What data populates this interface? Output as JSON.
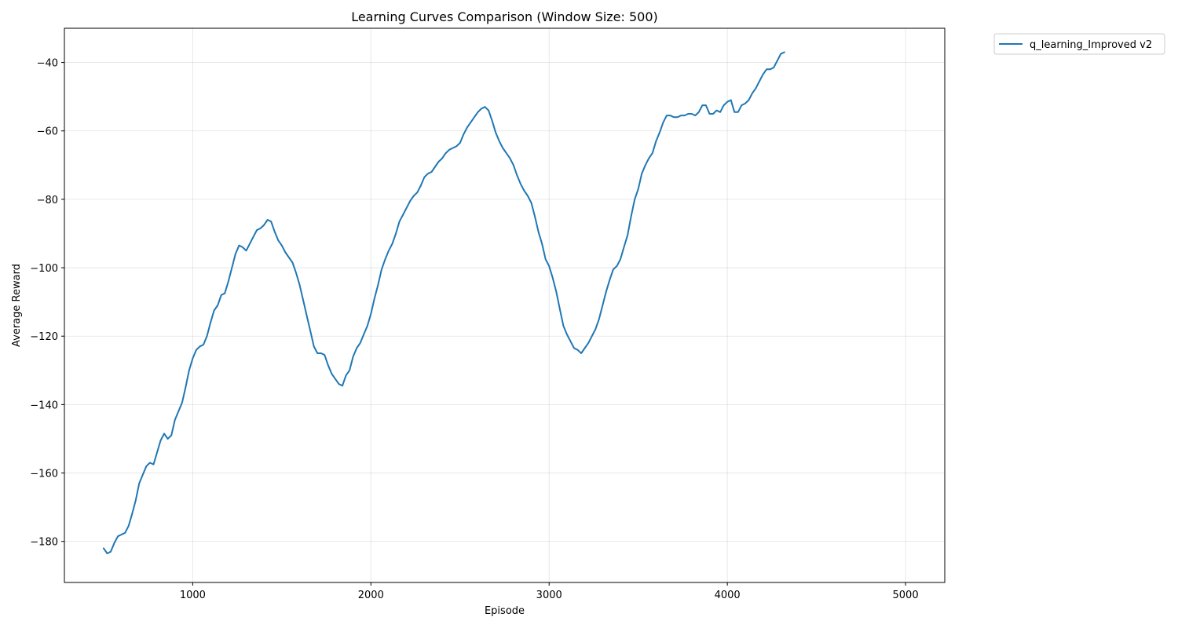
{
  "chart_data": {
    "type": "line",
    "title": "Learning Curves Comparison (Window Size: 500)",
    "xlabel": "Episode",
    "ylabel": "Average Reward",
    "xlim": [
      280,
      5220
    ],
    "ylim": [
      -192,
      -30
    ],
    "xticks": [
      1000,
      2000,
      3000,
      4000,
      5000
    ],
    "yticks": [
      -180,
      -160,
      -140,
      -120,
      -100,
      -80,
      -60,
      -40
    ],
    "grid": true,
    "legend_position": "outside-top-right",
    "series": [
      {
        "name": "q_learning_Improved v2",
        "color": "#1f77b4",
        "points": [
          [
            500,
            -182
          ],
          [
            520,
            -183.5
          ],
          [
            540,
            -183
          ],
          [
            560,
            -180.5
          ],
          [
            580,
            -178.5
          ],
          [
            600,
            -178
          ],
          [
            620,
            -177.5
          ],
          [
            640,
            -175.5
          ],
          [
            660,
            -172
          ],
          [
            680,
            -168
          ],
          [
            700,
            -163
          ],
          [
            720,
            -160.5
          ],
          [
            740,
            -158
          ],
          [
            760,
            -157
          ],
          [
            780,
            -157.5
          ],
          [
            800,
            -154
          ],
          [
            820,
            -150.5
          ],
          [
            840,
            -148.5
          ],
          [
            860,
            -150
          ],
          [
            880,
            -149
          ],
          [
            900,
            -144.5
          ],
          [
            920,
            -142
          ],
          [
            940,
            -139.5
          ],
          [
            960,
            -135
          ],
          [
            980,
            -130
          ],
          [
            1000,
            -126.5
          ],
          [
            1020,
            -124
          ],
          [
            1040,
            -123
          ],
          [
            1060,
            -122.5
          ],
          [
            1080,
            -120
          ],
          [
            1100,
            -116
          ],
          [
            1120,
            -112.5
          ],
          [
            1140,
            -111
          ],
          [
            1160,
            -108
          ],
          [
            1180,
            -107.5
          ],
          [
            1200,
            -104
          ],
          [
            1220,
            -100
          ],
          [
            1240,
            -96
          ],
          [
            1260,
            -93.5
          ],
          [
            1280,
            -94
          ],
          [
            1300,
            -95
          ],
          [
            1320,
            -93
          ],
          [
            1340,
            -91
          ],
          [
            1360,
            -89
          ],
          [
            1380,
            -88.5
          ],
          [
            1400,
            -87.5
          ],
          [
            1420,
            -86
          ],
          [
            1440,
            -86.5
          ],
          [
            1460,
            -89.5
          ],
          [
            1480,
            -92
          ],
          [
            1500,
            -93.5
          ],
          [
            1520,
            -95.5
          ],
          [
            1540,
            -97
          ],
          [
            1560,
            -98.5
          ],
          [
            1580,
            -101.5
          ],
          [
            1600,
            -105
          ],
          [
            1620,
            -109.5
          ],
          [
            1640,
            -114
          ],
          [
            1660,
            -118.5
          ],
          [
            1680,
            -123
          ],
          [
            1700,
            -125
          ],
          [
            1720,
            -125
          ],
          [
            1740,
            -125.5
          ],
          [
            1760,
            -128.5
          ],
          [
            1780,
            -131
          ],
          [
            1800,
            -132.5
          ],
          [
            1820,
            -134
          ],
          [
            1840,
            -134.5
          ],
          [
            1860,
            -131.5
          ],
          [
            1880,
            -130
          ],
          [
            1900,
            -126
          ],
          [
            1920,
            -123.5
          ],
          [
            1940,
            -122
          ],
          [
            1960,
            -119.5
          ],
          [
            1980,
            -117
          ],
          [
            2000,
            -113.5
          ],
          [
            2020,
            -109
          ],
          [
            2040,
            -105
          ],
          [
            2060,
            -100.5
          ],
          [
            2080,
            -97.5
          ],
          [
            2100,
            -95
          ],
          [
            2120,
            -93
          ],
          [
            2140,
            -90
          ],
          [
            2160,
            -86.5
          ],
          [
            2180,
            -84.5
          ],
          [
            2200,
            -82.5
          ],
          [
            2220,
            -80.5
          ],
          [
            2240,
            -79
          ],
          [
            2260,
            -78
          ],
          [
            2280,
            -76
          ],
          [
            2300,
            -73.5
          ],
          [
            2320,
            -72.5
          ],
          [
            2340,
            -72
          ],
          [
            2360,
            -70.5
          ],
          [
            2380,
            -69
          ],
          [
            2400,
            -68
          ],
          [
            2420,
            -66.5
          ],
          [
            2440,
            -65.5
          ],
          [
            2460,
            -65
          ],
          [
            2480,
            -64.5
          ],
          [
            2500,
            -63.5
          ],
          [
            2520,
            -61
          ],
          [
            2540,
            -59
          ],
          [
            2560,
            -57.5
          ],
          [
            2580,
            -56
          ],
          [
            2600,
            -54.5
          ],
          [
            2620,
            -53.5
          ],
          [
            2640,
            -53
          ],
          [
            2660,
            -54
          ],
          [
            2680,
            -57
          ],
          [
            2700,
            -60.5
          ],
          [
            2720,
            -63
          ],
          [
            2740,
            -65
          ],
          [
            2760,
            -66.5
          ],
          [
            2780,
            -68
          ],
          [
            2800,
            -70
          ],
          [
            2820,
            -73
          ],
          [
            2840,
            -75.5
          ],
          [
            2860,
            -77.5
          ],
          [
            2880,
            -79
          ],
          [
            2900,
            -81
          ],
          [
            2920,
            -85
          ],
          [
            2940,
            -89.5
          ],
          [
            2960,
            -93
          ],
          [
            2980,
            -97.5
          ],
          [
            3000,
            -99.5
          ],
          [
            3020,
            -103
          ],
          [
            3040,
            -107
          ],
          [
            3060,
            -112
          ],
          [
            3080,
            -117
          ],
          [
            3100,
            -119.5
          ],
          [
            3120,
            -121.5
          ],
          [
            3140,
            -123.5
          ],
          [
            3160,
            -124
          ],
          [
            3180,
            -125
          ],
          [
            3200,
            -123.5
          ],
          [
            3220,
            -122
          ],
          [
            3240,
            -120
          ],
          [
            3260,
            -118
          ],
          [
            3280,
            -115
          ],
          [
            3300,
            -111
          ],
          [
            3320,
            -107
          ],
          [
            3340,
            -103.5
          ],
          [
            3360,
            -100.5
          ],
          [
            3380,
            -99.5
          ],
          [
            3400,
            -97.5
          ],
          [
            3420,
            -94
          ],
          [
            3440,
            -90.5
          ],
          [
            3460,
            -85
          ],
          [
            3480,
            -80
          ],
          [
            3500,
            -77
          ],
          [
            3520,
            -72.5
          ],
          [
            3540,
            -70
          ],
          [
            3560,
            -68
          ],
          [
            3580,
            -66.5
          ],
          [
            3600,
            -63
          ],
          [
            3620,
            -60.5
          ],
          [
            3640,
            -57.5
          ],
          [
            3660,
            -55.5
          ],
          [
            3680,
            -55.5
          ],
          [
            3700,
            -56
          ],
          [
            3720,
            -56
          ],
          [
            3740,
            -55.5
          ],
          [
            3760,
            -55.5
          ],
          [
            3780,
            -55
          ],
          [
            3800,
            -55
          ],
          [
            3820,
            -55.5
          ],
          [
            3840,
            -54.5
          ],
          [
            3860,
            -52.5
          ],
          [
            3880,
            -52.5
          ],
          [
            3900,
            -55
          ],
          [
            3920,
            -55
          ],
          [
            3940,
            -54
          ],
          [
            3960,
            -54.5
          ],
          [
            3980,
            -52.5
          ],
          [
            4000,
            -51.5
          ],
          [
            4020,
            -51
          ],
          [
            4040,
            -54.5
          ],
          [
            4060,
            -54.5
          ],
          [
            4080,
            -52.5
          ],
          [
            4100,
            -52
          ],
          [
            4120,
            -51
          ],
          [
            4140,
            -49
          ],
          [
            4160,
            -47.5
          ],
          [
            4180,
            -45.5
          ],
          [
            4200,
            -43.5
          ],
          [
            4220,
            -42
          ],
          [
            4240,
            -42
          ],
          [
            4260,
            -41.5
          ],
          [
            4280,
            -39.5
          ],
          [
            4300,
            -37.5
          ],
          [
            4320,
            -37
          ]
        ]
      }
    ]
  }
}
